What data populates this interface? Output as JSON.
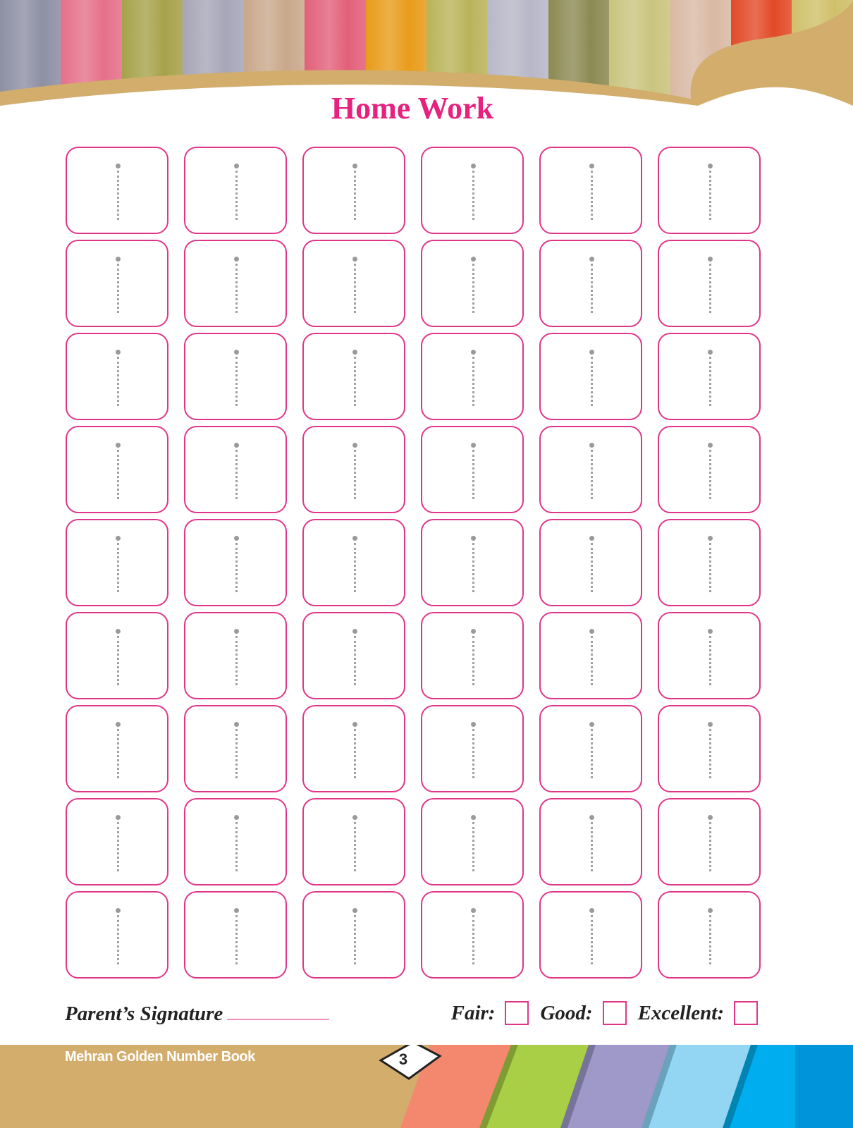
{
  "header": {
    "plank_colors": [
      "#8d8fa3",
      "#e5708a",
      "#a6a24a",
      "#a7a6b8",
      "#c9a88c",
      "#e2607a",
      "#e89c1a",
      "#b9b45a",
      "#b7b7c7",
      "#8c8a52",
      "#c9c47e",
      "#d9b9a4",
      "#e24a28",
      "#cfc06a"
    ],
    "curve_color": "#d2ad6c"
  },
  "title": "Home Work",
  "grid": {
    "rows": 9,
    "columns": 6,
    "box_color": "#e0368a",
    "trace_color": "#9a9a9a"
  },
  "signature": {
    "label": "Parent’s Signature"
  },
  "rating": {
    "fair": "Fair:",
    "good": "Good:",
    "excellent": "Excellent:"
  },
  "footer": {
    "book_title": "Mehran Golden Number Book",
    "page_number": "3",
    "base_color": "#d2ad6c",
    "stripe_colors": [
      "#f4886e",
      "#a8cf45",
      "#9e99c9",
      "#93d6f4",
      "#00aeef",
      "#0095da"
    ]
  }
}
